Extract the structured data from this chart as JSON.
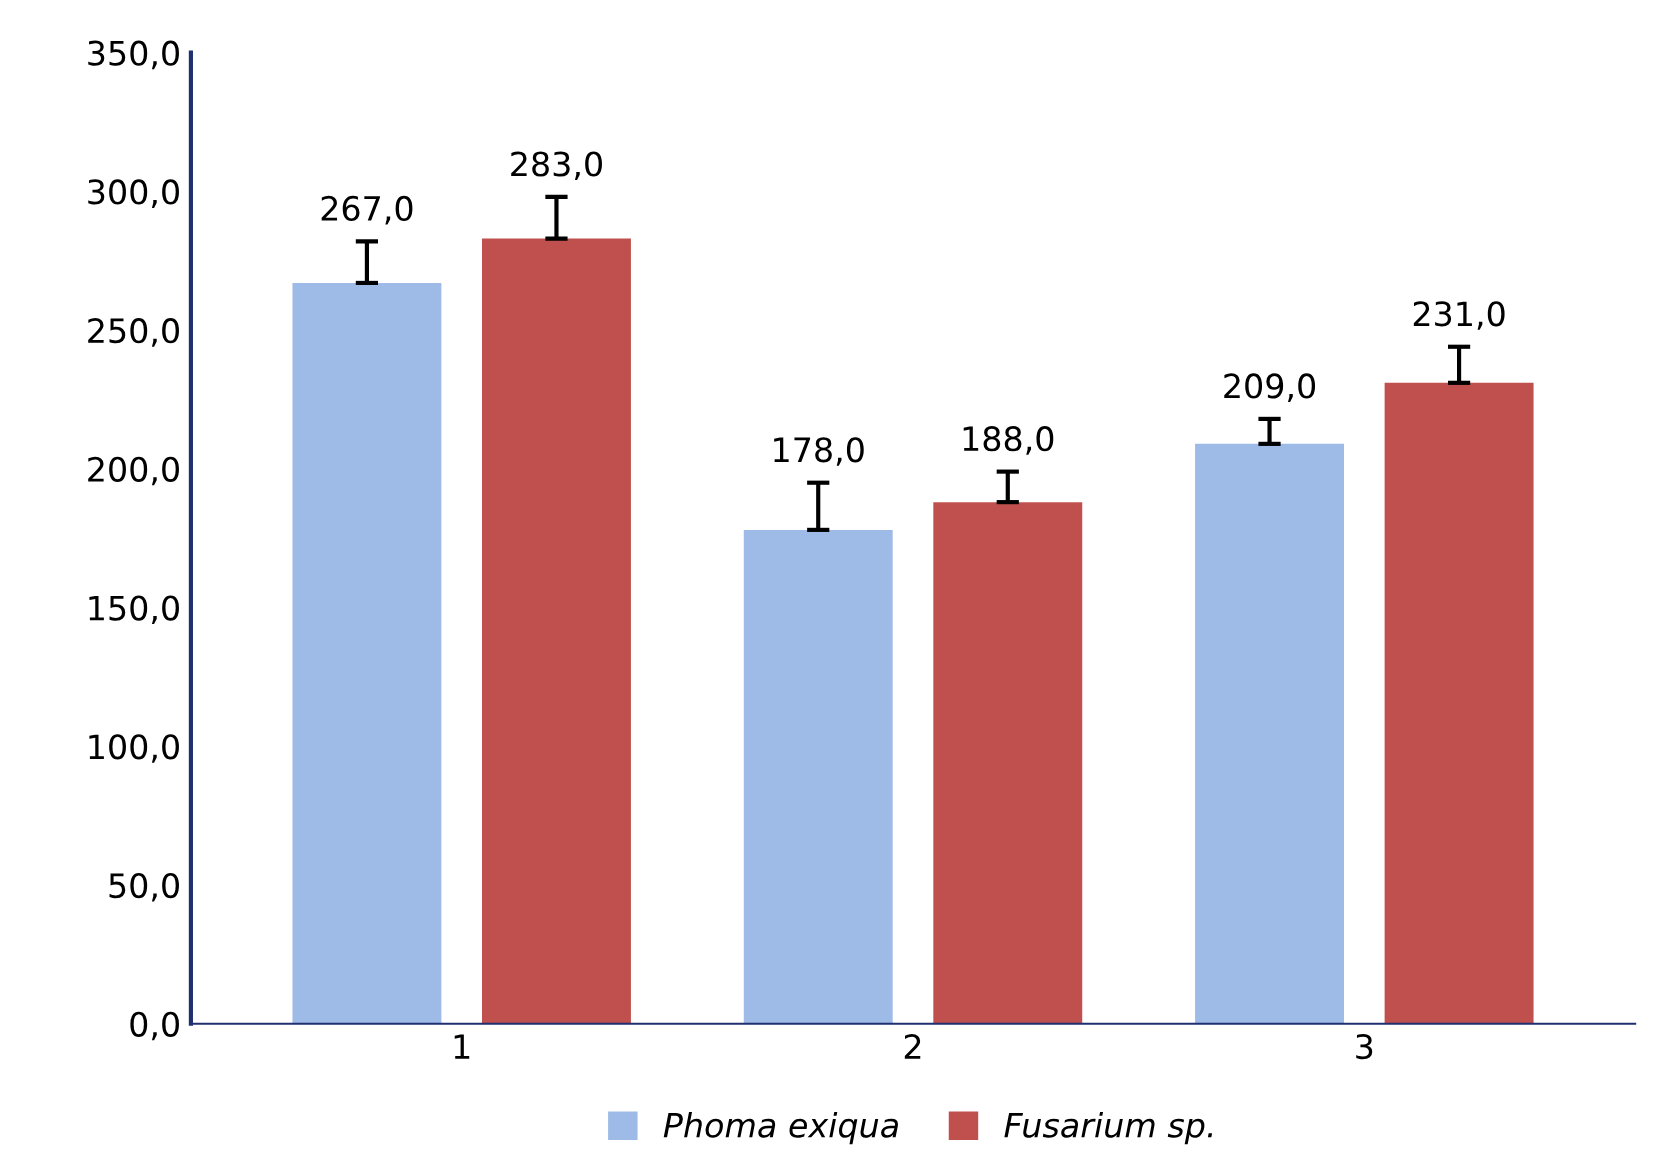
{
  "chart_data": {
    "type": "bar",
    "categories": [
      "1",
      "2",
      "3"
    ],
    "series": [
      {
        "name": "Phoma exiqua",
        "color": "#9dbbe6",
        "values": [
          267.0,
          178.0,
          209.0
        ],
        "value_labels": [
          "267,0",
          "178,0",
          "209,0"
        ],
        "errors": [
          [
            267.0,
            282.0
          ],
          [
            178.0,
            195.0
          ],
          [
            209.0,
            218.0
          ]
        ]
      },
      {
        "name": "Fusarium sp.",
        "color": "#c0504d",
        "values": [
          283.0,
          188.0,
          231.0
        ],
        "value_labels": [
          "283,0",
          "188,0",
          "231,0"
        ],
        "errors": [
          [
            283.0,
            298.0
          ],
          [
            188.0,
            199.0
          ],
          [
            231.0,
            244.0
          ]
        ]
      }
    ],
    "ylim": [
      0,
      350
    ],
    "yticks": [
      {
        "value": 0,
        "label": "0,0"
      },
      {
        "value": 50,
        "label": "50,0"
      },
      {
        "value": 100,
        "label": "100,0"
      },
      {
        "value": 150,
        "label": "150,0"
      },
      {
        "value": 200,
        "label": "200,0"
      },
      {
        "value": 250,
        "label": "250,0"
      },
      {
        "value": 300,
        "label": "300,0"
      },
      {
        "value": 350,
        "label": "350,0"
      }
    ],
    "grid": false,
    "legend": "bottom"
  }
}
